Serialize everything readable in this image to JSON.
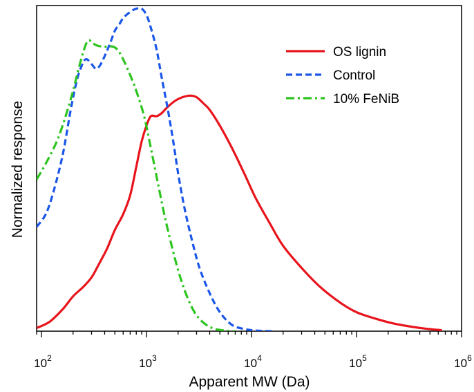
{
  "chart_data": {
    "type": "line",
    "title": "",
    "xlabel": "Apparent MW (Da)",
    "ylabel": "Normalized response",
    "xscale": "log",
    "xlim": [
      90,
      1000000
    ],
    "ylim": [
      0,
      1.03
    ],
    "yticks_shown": false,
    "grid": false,
    "legend_position": "top-right",
    "x_ticks": [
      {
        "base": "10",
        "exp": "2"
      },
      {
        "base": "10",
        "exp": "3"
      },
      {
        "base": "10",
        "exp": "4"
      },
      {
        "base": "10",
        "exp": "5"
      },
      {
        "base": "10",
        "exp": "6"
      }
    ],
    "series": [
      {
        "name": "OS lignin",
        "color": "#e8141c",
        "dash": "solid",
        "x": [
          90,
          120,
          160,
          200,
          250,
          300,
          350,
          420,
          500,
          600,
          700,
          800,
          900,
          1000,
          1100,
          1250,
          1400,
          1600,
          1900,
          2200,
          2600,
          3000,
          3500,
          4000,
          5000,
          6500,
          8500,
          11000,
          15000,
          20000,
          30000,
          45000,
          70000,
          100000,
          150000,
          220000,
          320000,
          450000,
          650000
        ],
        "y": [
          0.01,
          0.03,
          0.07,
          0.11,
          0.14,
          0.17,
          0.21,
          0.26,
          0.32,
          0.37,
          0.43,
          0.52,
          0.6,
          0.65,
          0.68,
          0.68,
          0.69,
          0.71,
          0.73,
          0.74,
          0.745,
          0.74,
          0.72,
          0.7,
          0.65,
          0.58,
          0.5,
          0.42,
          0.34,
          0.27,
          0.2,
          0.14,
          0.09,
          0.06,
          0.04,
          0.025,
          0.015,
          0.008,
          0.003
        ]
      },
      {
        "name": "Control",
        "color": "#1a56e8",
        "dash": "dashed",
        "x": [
          90,
          110,
          130,
          160,
          190,
          220,
          250,
          270,
          300,
          330,
          360,
          400,
          450,
          500,
          550,
          600,
          700,
          800,
          900,
          1000,
          1100,
          1250,
          1400,
          1600,
          1800,
          2000,
          2300,
          2700,
          3200,
          4000,
          5000,
          6500,
          8500,
          11000,
          16000
        ],
        "y": [
          0.33,
          0.37,
          0.44,
          0.56,
          0.7,
          0.8,
          0.85,
          0.86,
          0.845,
          0.83,
          0.84,
          0.87,
          0.91,
          0.95,
          0.97,
          0.99,
          1.01,
          1.02,
          1.02,
          1.0,
          0.96,
          0.89,
          0.8,
          0.7,
          0.6,
          0.5,
          0.39,
          0.29,
          0.2,
          0.12,
          0.06,
          0.02,
          0.007,
          0.002,
          0.0
        ]
      },
      {
        "name": "10% FeNiB",
        "color": "#2dc41f",
        "dash": "dashdot",
        "x": [
          90,
          110,
          140,
          170,
          200,
          230,
          260,
          280,
          300,
          330,
          380,
          430,
          480,
          530,
          600,
          700,
          800,
          950,
          1100,
          1300,
          1500,
          1800,
          2100,
          2500,
          3000,
          3700,
          4500,
          5500,
          7000
        ],
        "y": [
          0.48,
          0.53,
          0.6,
          0.68,
          0.76,
          0.84,
          0.9,
          0.92,
          0.915,
          0.905,
          0.9,
          0.9,
          0.9,
          0.89,
          0.86,
          0.81,
          0.76,
          0.68,
          0.58,
          0.46,
          0.36,
          0.25,
          0.17,
          0.1,
          0.05,
          0.02,
          0.007,
          0.002,
          0.0
        ]
      }
    ]
  }
}
